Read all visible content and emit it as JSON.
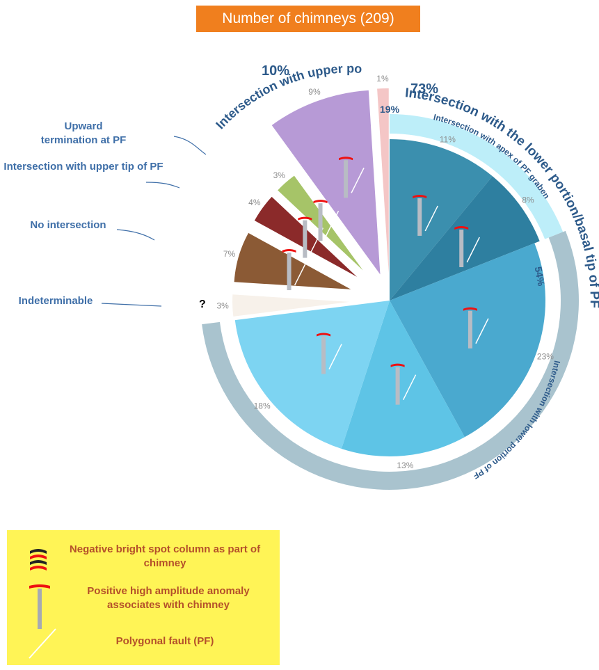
{
  "title": "Number of chimneys (209)",
  "colors": {
    "title_bg": "#f07f1e",
    "label": "#3f6fa8",
    "legend_bg": "#fff456",
    "legend_text": "#b4502a"
  },
  "chart_data": {
    "type": "pie",
    "title": "Number of chimneys (209)",
    "slices": [
      {
        "label": "Intersection with apex of PF graben",
        "value": 11,
        "text": "11%",
        "color": "#3b8fae"
      },
      {
        "label": "Intersection with apex of PF graben",
        "value": 8,
        "text": "8%",
        "color": "#2e7fa0"
      },
      {
        "label": "Intersection with lower portion of PF",
        "value": 23,
        "text": "23%",
        "color": "#4aa9cf"
      },
      {
        "label": "Intersection with lower portion of PF",
        "value": 13,
        "text": "13%",
        "color": "#5ec4e6"
      },
      {
        "label": "Intersection with lower portion of PF",
        "value": 18,
        "text": "18%",
        "color": "#7dd4f2"
      },
      {
        "label": "Indeterminable",
        "value": 3,
        "text": "3%",
        "color": "#f7f1ea"
      },
      {
        "label": "No intersection",
        "value": 7,
        "text": "7%",
        "color": "#8b5a35"
      },
      {
        "label": "Intersection with upper tip of PF",
        "value": 4,
        "text": "4%",
        "color": "#8b2a2a"
      },
      {
        "label": "Upward termination at PF",
        "value": 3,
        "text": "3%",
        "color": "#a6c468"
      },
      {
        "label": "Intersection with upper portion/upper tip of PF",
        "value": 9,
        "text": "9%",
        "color": "#b79ad6"
      },
      {
        "label": "Intersection with upper portion/upper tip of PF",
        "value": 1,
        "text": "1%",
        "color": "#f4c6c6"
      }
    ],
    "groups": [
      {
        "label": "Intersection with the lower portion/basal tip of PF",
        "value": 73,
        "text": "73%"
      },
      {
        "label": "Intersection with apex of PF graben",
        "value": 19,
        "text": "19%"
      },
      {
        "label": "Intersection with lower portion of PF",
        "value": 54,
        "text": "54%"
      },
      {
        "label": "Intersection with upper portion/upper tip of PF",
        "value": 10,
        "text": "10%"
      }
    ],
    "side_labels": {
      "upward": "Upward termination at PF",
      "upper_tip": "Intersection with upper tip of PF",
      "no_intersection": "No intersection",
      "indeterminable": "Indeterminable"
    },
    "question_mark": "?"
  },
  "legend": {
    "items": [
      {
        "text": "Negative bright spot column as part of chimney",
        "icon": "bright-spot-column-icon"
      },
      {
        "text": "Positive high amplitude anomaly associates with chimney",
        "icon": "chimney-anomaly-icon"
      },
      {
        "text": "Polygonal fault (PF)",
        "icon": "fault-line-icon"
      }
    ]
  }
}
